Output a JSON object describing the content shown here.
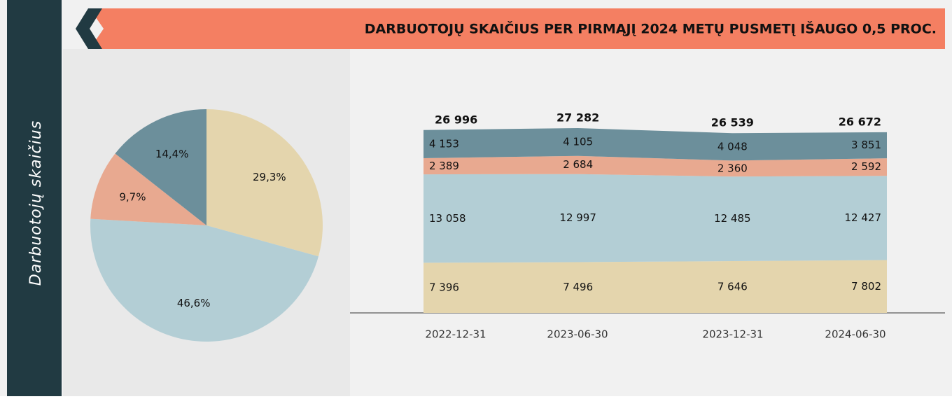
{
  "sidebar": "Darbuotojų skaičius",
  "chart_data": [
    {
      "type": "pie",
      "title": "DARBUOTOJŲ SKAIČIUS PER PIRMĄJĮ 2024 METŲ PUSMETĮ IŠAUGO 0,5 PROC.",
      "values": [
        29.3,
        46.6,
        9.7,
        14.4
      ],
      "value_labels": [
        "29,3%",
        "46,6%",
        "9,7%",
        "14,4%"
      ],
      "colors": [
        "#e4d5ad",
        "#b3ced5",
        "#e8a990",
        "#6c8f9b"
      ]
    },
    {
      "type": "stacked_area",
      "categories": [
        "2022-12-31",
        "2023-06-30",
        "2023-12-31",
        "2024-06-30"
      ],
      "series": [
        {
          "color": "#e4d5ad",
          "values": [
            7396,
            7496,
            7646,
            7802
          ],
          "value_labels": [
            "7 396",
            "7 496",
            "7 646",
            "7 802"
          ]
        },
        {
          "color": "#b3ced5",
          "values": [
            13058,
            12997,
            12485,
            12427
          ],
          "value_labels": [
            "13 058",
            "12 997",
            "12 485",
            "12 427"
          ]
        },
        {
          "color": "#e8a990",
          "values": [
            2389,
            2684,
            2360,
            2592
          ],
          "value_labels": [
            "2 389",
            "2 684",
            "2 360",
            "2 592"
          ]
        },
        {
          "color": "#6c8f9b",
          "values": [
            4153,
            4105,
            4048,
            3851
          ],
          "value_labels": [
            "4 153",
            "4 105",
            "4 048",
            "3 851"
          ]
        }
      ],
      "totals": [
        26996,
        27282,
        26539,
        26672
      ],
      "total_labels": [
        "26 996",
        "27 282",
        "26 539",
        "26 672"
      ]
    }
  ]
}
